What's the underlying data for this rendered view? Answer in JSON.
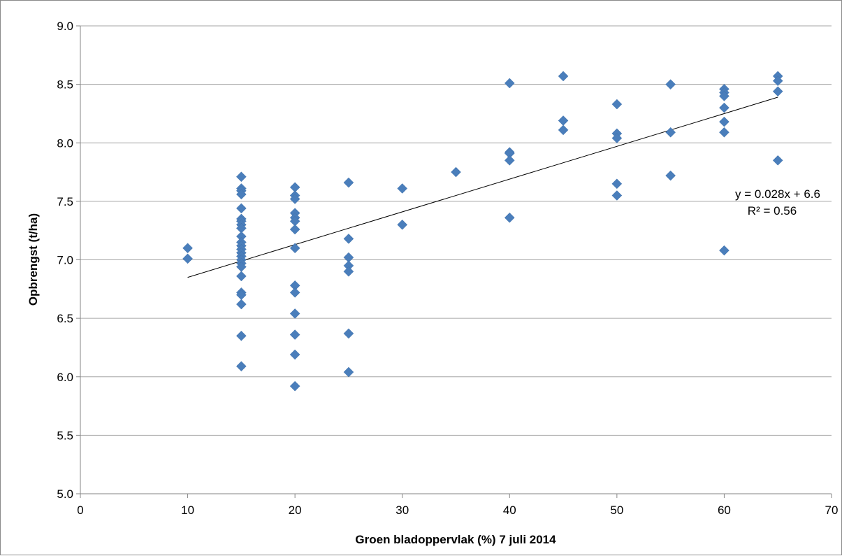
{
  "chart_data": {
    "type": "scatter",
    "title": "",
    "xlabel": "Groen bladoppervlak (%) 7 juli 2014",
    "ylabel": "Opbrengst (t/ha)",
    "xlim": [
      0,
      70
    ],
    "ylim": [
      5.0,
      9.0
    ],
    "x_ticks": [
      "0",
      "10",
      "20",
      "30",
      "40",
      "50",
      "60",
      "70"
    ],
    "y_ticks": [
      "5.0",
      "5.5",
      "6.0",
      "6.5",
      "7.0",
      "7.5",
      "8.0",
      "8.5",
      "9.0"
    ],
    "grid": "horizontal",
    "marker": "diamond",
    "marker_color": "#4a7ebb",
    "trendline_color": "#000000",
    "grid_color": "#a6a6a6",
    "points": [
      {
        "x": 10,
        "y": 7.1
      },
      {
        "x": 10,
        "y": 7.01
      },
      {
        "x": 15,
        "y": 7.71
      },
      {
        "x": 15,
        "y": 7.61
      },
      {
        "x": 15,
        "y": 7.59
      },
      {
        "x": 15,
        "y": 7.56
      },
      {
        "x": 15,
        "y": 7.44
      },
      {
        "x": 15,
        "y": 7.35
      },
      {
        "x": 15,
        "y": 7.33
      },
      {
        "x": 15,
        "y": 7.3
      },
      {
        "x": 15,
        "y": 7.27
      },
      {
        "x": 15,
        "y": 7.2
      },
      {
        "x": 15,
        "y": 7.15
      },
      {
        "x": 15,
        "y": 7.12
      },
      {
        "x": 15,
        "y": 7.09
      },
      {
        "x": 15,
        "y": 7.06
      },
      {
        "x": 15,
        "y": 7.03
      },
      {
        "x": 15,
        "y": 7.0
      },
      {
        "x": 15,
        "y": 6.97
      },
      {
        "x": 15,
        "y": 6.94
      },
      {
        "x": 15,
        "y": 6.86
      },
      {
        "x": 15,
        "y": 6.72
      },
      {
        "x": 15,
        "y": 6.7
      },
      {
        "x": 15,
        "y": 6.62
      },
      {
        "x": 15,
        "y": 6.35
      },
      {
        "x": 15,
        "y": 6.09
      },
      {
        "x": 20,
        "y": 7.62
      },
      {
        "x": 20,
        "y": 7.55
      },
      {
        "x": 20,
        "y": 7.52
      },
      {
        "x": 20,
        "y": 7.4
      },
      {
        "x": 20,
        "y": 7.36
      },
      {
        "x": 20,
        "y": 7.33
      },
      {
        "x": 20,
        "y": 7.26
      },
      {
        "x": 20,
        "y": 7.1
      },
      {
        "x": 20,
        "y": 6.78
      },
      {
        "x": 20,
        "y": 6.72
      },
      {
        "x": 20,
        "y": 6.54
      },
      {
        "x": 20,
        "y": 6.36
      },
      {
        "x": 20,
        "y": 6.19
      },
      {
        "x": 20,
        "y": 5.92
      },
      {
        "x": 25,
        "y": 7.66
      },
      {
        "x": 25,
        "y": 7.18
      },
      {
        "x": 25,
        "y": 7.02
      },
      {
        "x": 25,
        "y": 6.95
      },
      {
        "x": 25,
        "y": 6.9
      },
      {
        "x": 25,
        "y": 6.37
      },
      {
        "x": 25,
        "y": 6.04
      },
      {
        "x": 30,
        "y": 7.61
      },
      {
        "x": 30,
        "y": 7.3
      },
      {
        "x": 35,
        "y": 7.75
      },
      {
        "x": 40,
        "y": 8.51
      },
      {
        "x": 40,
        "y": 7.92
      },
      {
        "x": 40,
        "y": 7.91
      },
      {
        "x": 40,
        "y": 7.85
      },
      {
        "x": 40,
        "y": 7.36
      },
      {
        "x": 45,
        "y": 8.57
      },
      {
        "x": 45,
        "y": 8.19
      },
      {
        "x": 45,
        "y": 8.11
      },
      {
        "x": 50,
        "y": 8.33
      },
      {
        "x": 50,
        "y": 8.08
      },
      {
        "x": 50,
        "y": 8.04
      },
      {
        "x": 50,
        "y": 7.65
      },
      {
        "x": 50,
        "y": 7.55
      },
      {
        "x": 55,
        "y": 8.5
      },
      {
        "x": 55,
        "y": 8.09
      },
      {
        "x": 55,
        "y": 7.72
      },
      {
        "x": 60,
        "y": 8.46
      },
      {
        "x": 60,
        "y": 8.43
      },
      {
        "x": 60,
        "y": 8.4
      },
      {
        "x": 60,
        "y": 8.3
      },
      {
        "x": 60,
        "y": 8.18
      },
      {
        "x": 60,
        "y": 8.09
      },
      {
        "x": 60,
        "y": 7.08
      },
      {
        "x": 65,
        "y": 8.57
      },
      {
        "x": 65,
        "y": 8.53
      },
      {
        "x": 65,
        "y": 8.44
      },
      {
        "x": 65,
        "y": 7.85
      }
    ],
    "trendline": {
      "slope": 0.028,
      "intercept": 6.57,
      "x_range": [
        10,
        65
      ],
      "equation_label": "y = 0.028x + 6.6",
      "r2_label": "R² = 0.56"
    }
  }
}
